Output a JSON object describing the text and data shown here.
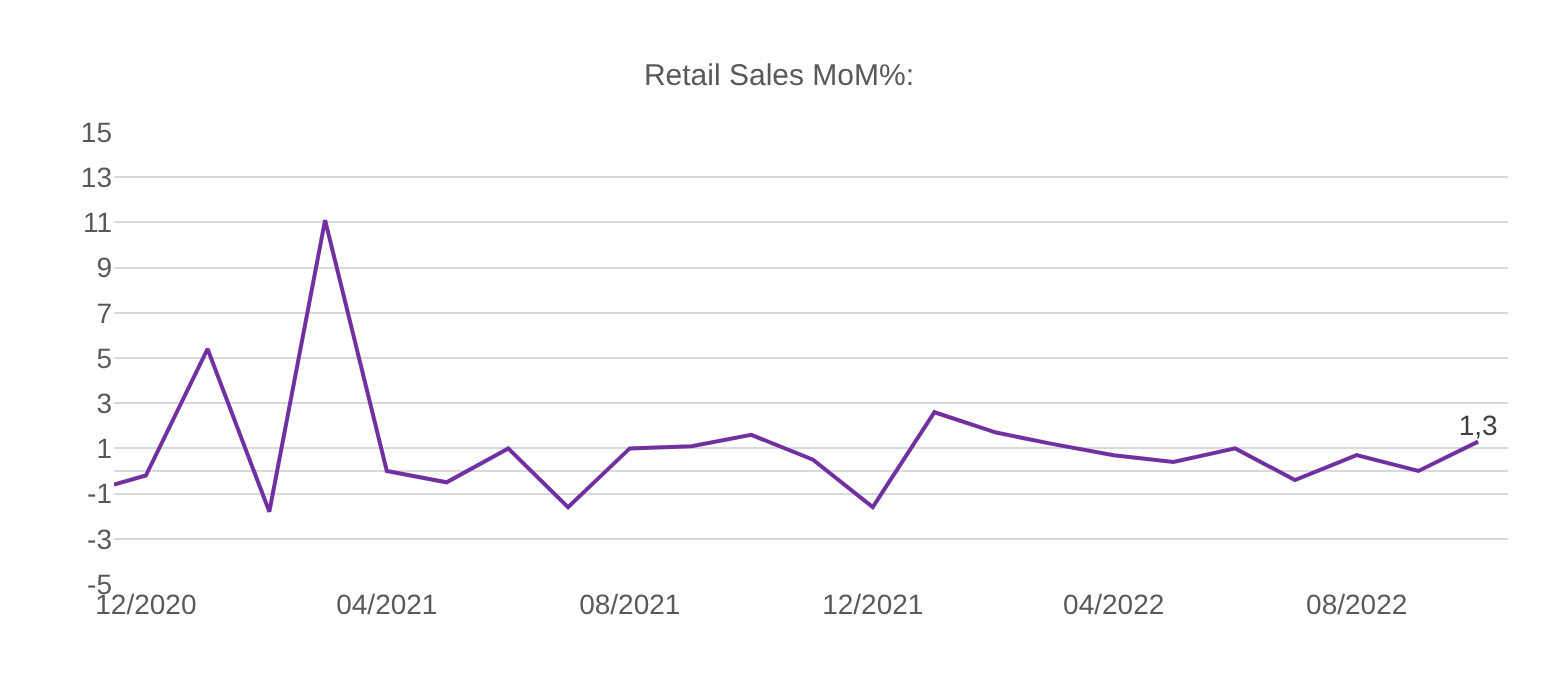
{
  "chart_data": {
    "type": "line",
    "title": "Retail Sales MoM%:",
    "x": [
      "2020-11-15",
      "2020-12",
      "2021-01",
      "2021-02",
      "2021-03",
      "2021-04",
      "2021-05",
      "2021-06",
      "2021-07",
      "2021-08",
      "2021-09",
      "2021-10",
      "2021-11",
      "2021-12",
      "2022-01",
      "2022-02",
      "2022-03",
      "2022-04",
      "2022-05",
      "2022-06",
      "2022-07",
      "2022-08",
      "2022-09",
      "2022-10"
    ],
    "series": [
      {
        "color": "#7030a0",
        "values": [
          -0.6,
          -0.2,
          5.4,
          -1.8,
          11.1,
          0.0,
          -0.5,
          1.0,
          -1.6,
          1.0,
          1.1,
          1.6,
          0.5,
          -1.6,
          2.6,
          1.7,
          1.2,
          0.7,
          0.4,
          1.0,
          -0.4,
          0.7,
          0.0,
          1.3
        ],
        "value_labels": [
          null,
          null,
          null,
          null,
          null,
          null,
          null,
          null,
          null,
          null,
          null,
          null,
          null,
          null,
          null,
          null,
          null,
          null,
          null,
          null,
          null,
          null,
          null,
          "1,3"
        ]
      }
    ],
    "xlim": [
      "2020-11-15",
      "2022-10-16"
    ],
    "xticks": [
      {
        "value": "2020-12",
        "label": "12/2020"
      },
      {
        "value": "2021-04",
        "label": "04/2021"
      },
      {
        "value": "2021-08",
        "label": "08/2021"
      },
      {
        "value": "2021-12",
        "label": "12/2021"
      },
      {
        "value": "2022-04",
        "label": "04/2022"
      },
      {
        "value": "2022-08",
        "label": "08/2022"
      }
    ],
    "ylim": [
      -5,
      15
    ],
    "yticks": [
      -5,
      -3,
      -1,
      1,
      3,
      5,
      7,
      9,
      11,
      13,
      15
    ],
    "grid": "y",
    "marker": "none",
    "line_style": "solid"
  }
}
